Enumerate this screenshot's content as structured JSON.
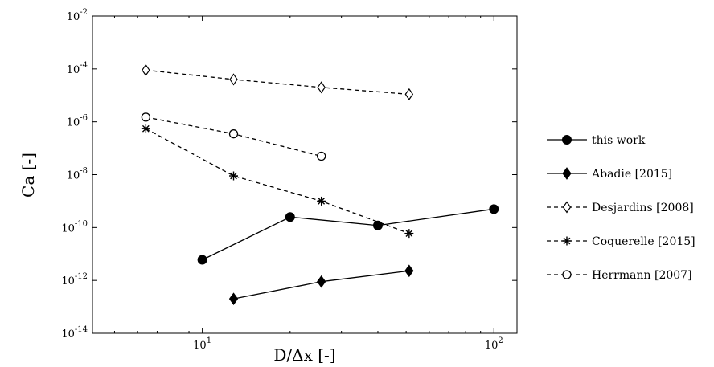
{
  "chart_data": {
    "type": "line",
    "xscale": "log",
    "yscale": "log",
    "xlim": [
      4.2,
      120
    ],
    "ylim": [
      1e-14,
      0.01
    ],
    "xlabel": "D/Δx  [-]",
    "ylabel": "Ca [-]",
    "xticks": [
      {
        "value": 10,
        "base": "10",
        "exp": "1"
      },
      {
        "value": 100,
        "base": "10",
        "exp": "2"
      }
    ],
    "yticks": [
      {
        "value": 1e-14,
        "base": "10",
        "exp": "-14"
      },
      {
        "value": 1e-12,
        "base": "10",
        "exp": "-12"
      },
      {
        "value": 1e-10,
        "base": "10",
        "exp": "-10"
      },
      {
        "value": 1e-08,
        "base": "10",
        "exp": "-8"
      },
      {
        "value": 1e-06,
        "base": "10",
        "exp": "-6"
      },
      {
        "value": 0.0001,
        "base": "10",
        "exp": "-4"
      },
      {
        "value": 0.01,
        "base": "10",
        "exp": "-2"
      }
    ],
    "legend_position": "right",
    "grid": false,
    "series": [
      {
        "name": "this work",
        "marker": "circle-filled",
        "line": "solid",
        "x": [
          10,
          20,
          40,
          100
        ],
        "y": [
          6e-12,
          2.5e-10,
          1.2e-10,
          5e-10
        ]
      },
      {
        "name": "Abadie [2015]",
        "marker": "diamond-filled",
        "line": "solid",
        "x": [
          12.8,
          25.6,
          51.2
        ],
        "y": [
          2e-13,
          9e-13,
          2.3e-12
        ]
      },
      {
        "name": "Desjardins [2008]",
        "marker": "diamond-open",
        "line": "dashed",
        "x": [
          6.4,
          12.8,
          25.6,
          51.2
        ],
        "y": [
          9e-05,
          4e-05,
          2e-05,
          1.1e-05
        ]
      },
      {
        "name": "Coquerelle [2015]",
        "marker": "asterisk",
        "line": "dashed",
        "x": [
          6.4,
          12.8,
          25.6,
          51.2
        ],
        "y": [
          5.5e-07,
          9e-09,
          1e-09,
          6e-11
        ]
      },
      {
        "name": "Herrmann [2007]",
        "marker": "circle-open",
        "line": "dashed",
        "x": [
          6.4,
          12.8,
          25.6
        ],
        "y": [
          1.5e-06,
          3.5e-07,
          5e-08
        ]
      }
    ]
  }
}
